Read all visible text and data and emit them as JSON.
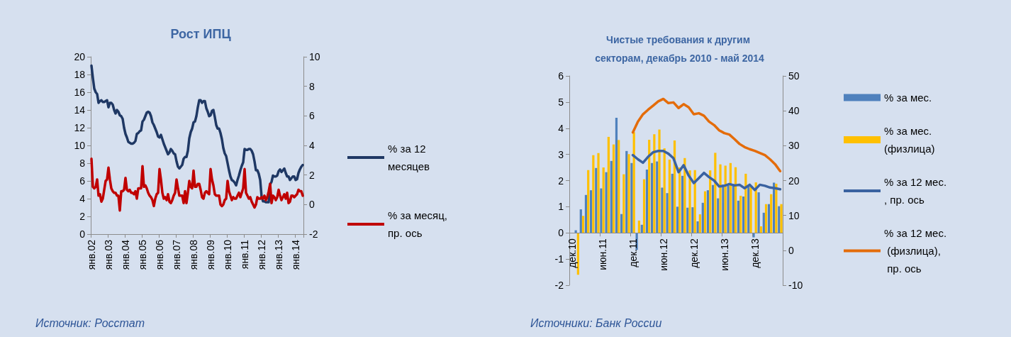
{
  "chart_data": [
    {
      "type": "line",
      "title": "Рост ИПЦ",
      "legend": "right",
      "annotations": [
        "Источник: Росстат"
      ],
      "categories": [
        "янв.02",
        null,
        null,
        null,
        null,
        null,
        null,
        null,
        null,
        null,
        null,
        null,
        "янв.03",
        null,
        null,
        null,
        null,
        null,
        null,
        null,
        null,
        null,
        null,
        null,
        "янв.04",
        null,
        null,
        null,
        null,
        null,
        null,
        null,
        null,
        null,
        null,
        null,
        "янв.05",
        null,
        null,
        null,
        null,
        null,
        null,
        null,
        null,
        null,
        null,
        null,
        "янв.06",
        null,
        null,
        null,
        null,
        null,
        null,
        null,
        null,
        null,
        null,
        null,
        "янв.07",
        null,
        null,
        null,
        null,
        null,
        null,
        null,
        null,
        null,
        null,
        null,
        "янв.08",
        null,
        null,
        null,
        null,
        null,
        null,
        null,
        null,
        null,
        null,
        null,
        "янв.09",
        null,
        null,
        null,
        null,
        null,
        null,
        null,
        null,
        null,
        null,
        null,
        "янв.10",
        null,
        null,
        null,
        null,
        null,
        null,
        null,
        null,
        null,
        null,
        null,
        "янв.11",
        null,
        null,
        null,
        null,
        null,
        null,
        null,
        null,
        null,
        null,
        null,
        "янв.12",
        null,
        null,
        null,
        null,
        null,
        null,
        null,
        null,
        null,
        null,
        null,
        "янв.13",
        null,
        null,
        null,
        null,
        null,
        null,
        null,
        null,
        null,
        null,
        null,
        "янв.14",
        null,
        null,
        null,
        null,
        null
      ],
      "ylim": [
        0,
        20
      ],
      "yticks": [
        0,
        2,
        4,
        6,
        8,
        10,
        12,
        14,
        16,
        18,
        20
      ],
      "y2lim": [
        -2,
        10
      ],
      "y2ticks": [
        -2,
        0,
        2,
        4,
        6,
        8,
        10
      ],
      "series": [
        {
          "name": "% за 12 месяцев",
          "color": "#1f3864",
          "values": [
            19.0,
            17.6,
            16.4,
            16.0,
            15.8,
            14.8,
            15.0,
            15.1,
            14.9,
            14.9,
            15.0,
            15.1,
            14.3,
            14.8,
            14.8,
            14.6,
            14.0,
            13.6,
            14.0,
            13.8,
            13.4,
            13.3,
            13.0,
            12.0,
            11.3,
            10.9,
            10.4,
            10.3,
            10.2,
            10.2,
            10.3,
            10.5,
            11.3,
            11.4,
            11.6,
            11.7,
            12.7,
            12.9,
            13.3,
            13.7,
            13.8,
            13.7,
            13.3,
            12.6,
            12.3,
            11.9,
            11.5,
            11.0,
            10.9,
            11.2,
            10.7,
            10.2,
            9.8,
            9.4,
            9.0,
            9.2,
            9.6,
            9.4,
            9.1,
            9.0,
            8.2,
            7.6,
            7.4,
            7.6,
            7.8,
            8.5,
            8.7,
            8.7,
            9.4,
            10.8,
            11.5,
            11.9,
            12.6,
            12.7,
            13.3,
            14.3,
            15.1,
            15.1,
            14.8,
            15.0,
            15.0,
            14.2,
            13.8,
            13.3,
            13.4,
            13.9,
            14.0,
            13.2,
            12.3,
            11.9,
            11.9,
            11.4,
            10.7,
            9.7,
            9.1,
            8.8,
            8.0,
            7.2,
            6.5,
            6.1,
            6.0,
            5.8,
            5.5,
            6.1,
            6.6,
            7.2,
            7.7,
            8.1,
            9.6,
            9.5,
            9.5,
            9.6,
            9.6,
            9.4,
            9.0,
            8.2,
            7.2,
            7.2,
            6.8,
            6.1,
            4.2,
            3.7,
            3.7,
            3.6,
            3.6,
            3.6,
            5.6,
            5.9,
            6.6,
            6.5,
            6.5,
            6.6,
            7.1,
            7.3,
            7.0,
            7.2,
            7.4,
            6.9,
            6.5,
            6.5,
            6.1,
            6.3,
            6.5,
            6.5,
            6.1,
            6.2,
            6.9,
            7.3,
            7.6,
            7.8
          ]
        },
        {
          "name": "% за месяц, пр. ось",
          "color": "#c00000",
          "axis": "y2",
          "values": [
            3.1,
            1.2,
            1.1,
            1.2,
            1.7,
            0.6,
            0.7,
            0.2,
            0.4,
            1.0,
            1.6,
            1.7,
            2.5,
            1.7,
            1.1,
            0.9,
            0.8,
            0.8,
            0.6,
            0.6,
            -0.4,
            0.9,
            0.9,
            1.0,
            1.8,
            1.0,
            0.9,
            1.0,
            0.8,
            0.8,
            0.7,
            0.9,
            0.4,
            1.1,
            1.1,
            1.1,
            2.6,
            1.2,
            1.3,
            1.1,
            0.8,
            0.6,
            0.5,
            0.3,
            -0.1,
            0.4,
            0.7,
            0.8,
            2.4,
            1.7,
            0.8,
            0.4,
            0.5,
            0.3,
            0.7,
            0.2,
            0.1,
            0.3,
            0.6,
            0.8,
            1.7,
            1.1,
            0.6,
            0.6,
            0.6,
            0.1,
            0.9,
            0.1,
            0.8,
            1.6,
            1.2,
            1.1,
            2.3,
            1.2,
            1.2,
            1.4,
            1.4,
            1.0,
            0.5,
            0.4,
            0.8,
            0.9,
            0.8,
            0.7,
            2.4,
            1.7,
            1.3,
            0.7,
            0.6,
            0.6,
            0.6,
            0.0,
            -0.1,
            0.0,
            0.3,
            0.4,
            1.6,
            0.9,
            0.6,
            0.3,
            0.5,
            0.4,
            0.4,
            0.6,
            0.8,
            0.5,
            0.8,
            1.1,
            2.4,
            0.8,
            0.6,
            0.4,
            0.5,
            0.2,
            0.0,
            -0.2,
            0.0,
            0.5,
            0.4,
            0.4,
            0.5,
            0.4,
            0.6,
            0.3,
            0.5,
            0.9,
            1.4,
            0.1,
            0.6,
            0.5,
            0.3,
            0.5,
            1.0,
            0.6,
            0.3,
            0.5,
            0.7,
            0.4,
            0.8,
            0.1,
            0.2,
            0.6,
            0.6,
            0.5,
            0.6,
            0.7,
            1.0,
            0.9,
            0.9,
            0.6
          ]
        }
      ]
    },
    {
      "type": "bar",
      "title": "Чистые требования к другим секторам, декабрь 2010 - май 2014",
      "legend": "right",
      "annotations": [
        "Источники: Банк России"
      ],
      "categories": [
        "дек.10",
        null,
        null,
        null,
        null,
        null,
        "июн.11",
        null,
        null,
        null,
        null,
        null,
        "дек.11",
        null,
        null,
        null,
        null,
        null,
        "июн.12",
        null,
        null,
        null,
        null,
        null,
        "дек.12",
        null,
        null,
        null,
        null,
        null,
        "июн.13",
        null,
        null,
        null,
        null,
        null,
        "дек.13",
        null,
        null,
        null,
        null,
        null
      ],
      "ylim": [
        -2,
        6
      ],
      "yticks": [
        -2,
        -1,
        0,
        1,
        2,
        3,
        4,
        5,
        6
      ],
      "y2lim": [
        -10,
        50
      ],
      "y2ticks": [
        -10,
        0,
        10,
        20,
        30,
        40,
        50
      ],
      "series": [
        {
          "name": "% за мес.",
          "color": "#4f81bd",
          "values": [
            null,
            0.1,
            0.9,
            1.45,
            1.63,
            2.48,
            1.7,
            2.32,
            2.75,
            4.4,
            0.72,
            3.13,
            2.67,
            -0.65,
            0.31,
            2.42,
            2.67,
            2.73,
            1.73,
            1.52,
            2.26,
            1.0,
            2.18,
            0.96,
            0.98,
            0.44,
            1.15,
            1.63,
            1.83,
            1.32,
            1.85,
            1.82,
            1.87,
            1.23,
            1.39,
            1.78,
            -0.17,
            1.55,
            0.77,
            1.1,
            1.92,
            1.02
          ]
        },
        {
          "name": "% за мес. (физлица)",
          "color": "#ffc000",
          "values": [
            null,
            -1.6,
            0.65,
            2.4,
            2.97,
            3.05,
            2.5,
            3.67,
            3.38,
            3.55,
            2.24,
            3.01,
            3.85,
            0.47,
            2.05,
            3.56,
            3.77,
            3.95,
            3.23,
            2.8,
            3.53,
            2.5,
            2.86,
            2.39,
            2.4,
            0.71,
            1.59,
            2.39,
            3.06,
            2.62,
            2.57,
            2.67,
            2.51,
            1.42,
            2.26,
            1.75,
            1.93,
            0.25,
            1.1,
            1.48,
            1.88,
            1.1
          ]
        },
        {
          "name": "% за 12 мес., пр. ось",
          "type": "line",
          "axis": "y2",
          "color": "#3a62a0",
          "values": [
            null,
            null,
            null,
            null,
            null,
            null,
            null,
            null,
            null,
            null,
            null,
            null,
            27.3,
            26.1,
            25.1,
            26.8,
            28.1,
            28.5,
            28.5,
            27.7,
            26.4,
            22.4,
            24.4,
            21.4,
            19.3,
            20.7,
            22.2,
            21.0,
            20.0,
            18.3,
            18.5,
            19.0,
            18.6,
            18.8,
            17.8,
            18.8,
            17.3,
            18.8,
            18.5,
            18.0,
            17.8,
            17.5
          ]
        },
        {
          "name": "% за 12 мес. (физлица), пр. ось",
          "type": "line",
          "axis": "y2",
          "color": "#e46c0a",
          "values": [
            null,
            null,
            null,
            null,
            null,
            null,
            null,
            null,
            null,
            null,
            null,
            null,
            33.8,
            36.9,
            39.0,
            40.3,
            41.5,
            42.7,
            43.4,
            42.2,
            42.4,
            40.8,
            41.9,
            41.0,
            39.0,
            39.3,
            38.6,
            36.9,
            35.9,
            34.4,
            33.6,
            33.2,
            31.9,
            30.5,
            29.6,
            29.0,
            28.5,
            27.9,
            27.3,
            26.1,
            24.7,
            22.7
          ]
        }
      ]
    }
  ]
}
